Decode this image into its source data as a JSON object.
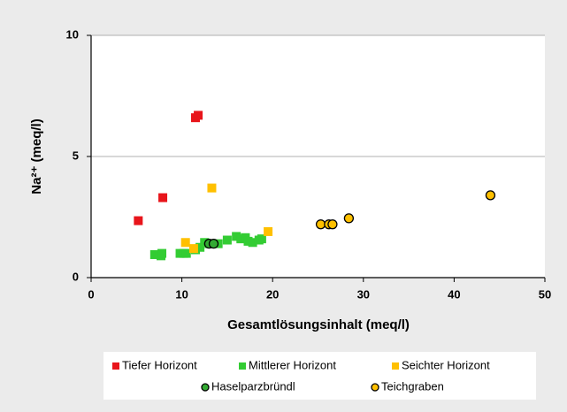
{
  "chart_data": {
    "type": "scatter",
    "x_label": "Gesamtlösungsinhalt (meq/l)",
    "y_label": "Na²⁺ (meq/l)",
    "xlim": [
      0,
      50
    ],
    "xticks": [
      0,
      10,
      20,
      30,
      40,
      50
    ],
    "ylim": [
      0,
      10
    ],
    "yticks": [
      0,
      5,
      10
    ],
    "grid": true,
    "legend": "bottom",
    "series": [
      {
        "name": "Tiefer Horizont",
        "color": "#e8151b",
        "marker": "square",
        "x": [
          5.2,
          7.9,
          11.5,
          11.8
        ],
        "values": [
          2.35,
          3.3,
          6.6,
          6.7
        ]
      },
      {
        "name": "Mittlerer Horizont",
        "color": "#33cc33",
        "marker": "square",
        "x": [
          7.0,
          7.7,
          7.8,
          9.8,
          10.2,
          10.5,
          11.5,
          12.0,
          12.5,
          13.0,
          14.0,
          15.0,
          16.0,
          16.5,
          17.0,
          17.3,
          17.8,
          18.5,
          18.8
        ],
        "values": [
          0.95,
          0.9,
          1.0,
          1.0,
          1.0,
          1.0,
          1.15,
          1.25,
          1.45,
          1.4,
          1.4,
          1.55,
          1.7,
          1.6,
          1.65,
          1.5,
          1.45,
          1.55,
          1.6
        ]
      },
      {
        "name": "Seichter Horizont",
        "color": "#ffc000",
        "marker": "square",
        "x": [
          10.4,
          11.3,
          13.3,
          19.5
        ],
        "values": [
          1.45,
          1.2,
          3.7,
          1.9
        ]
      },
      {
        "name": "Haselparzbründl",
        "color": "#33aa33",
        "marker": "circle",
        "x": [
          13.0,
          13.5
        ],
        "values": [
          1.4,
          1.4
        ]
      },
      {
        "name": "Teichgraben",
        "color": "#ffc000",
        "marker": "circle",
        "x": [
          25.3,
          26.2,
          26.6,
          28.4,
          44.0
        ],
        "values": [
          2.2,
          2.2,
          2.2,
          2.45,
          3.4
        ]
      }
    ]
  }
}
